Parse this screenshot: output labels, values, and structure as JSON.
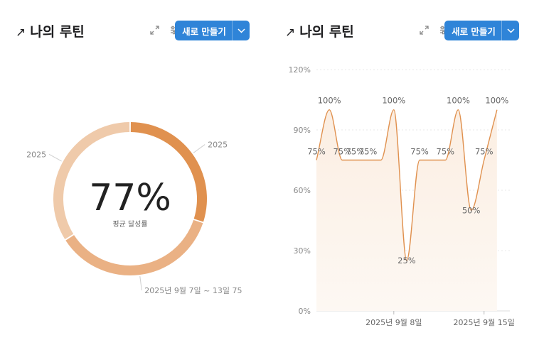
{
  "panels": [
    {
      "title": "나의 루틴",
      "title_icon": "arrow-up-right-icon",
      "new_button_label": "새로 만들기",
      "expand_icon": "expand-icon",
      "settings_icon": "sliders-icon",
      "dropdown_icon": "chevron-down-icon"
    },
    {
      "title": "나의 루틴",
      "title_icon": "arrow-up-right-icon",
      "new_button_label": "새로 만들기",
      "expand_icon": "expand-icon",
      "settings_icon": "sliders-icon",
      "dropdown_icon": "chevron-down-icon"
    }
  ],
  "colors": {
    "accent": "#2f84d8",
    "seg1": "#e0914f",
    "seg2": "#eab184",
    "seg3": "#efcaaa",
    "line": "#e0914f",
    "area": "#fdf3ea"
  },
  "chart_data": [
    {
      "type": "pie",
      "subtype": "donut",
      "center_value": "77%",
      "center_label": "평균 달성률",
      "slices": [
        {
          "label": "2025",
          "value": 30
        },
        {
          "label": "2025년 9월 7일 ~ 13일 75",
          "value": 36
        },
        {
          "label": "2025",
          "value": 34
        }
      ]
    },
    {
      "type": "area",
      "x": [
        "2025-09-02",
        "2025-09-03",
        "2025-09-04",
        "2025-09-05",
        "2025-09-06",
        "2025-09-07",
        "2025-09-08",
        "2025-09-09",
        "2025-09-10",
        "2025-09-11",
        "2025-09-12",
        "2025-09-13",
        "2025-09-14",
        "2025-09-15",
        "2025-09-16",
        "2025-09-17"
      ],
      "values": [
        75,
        100,
        75,
        75,
        75,
        75,
        100,
        25,
        75,
        75,
        75,
        100,
        50,
        75,
        100,
        null
      ],
      "data_labels": [
        "75%",
        "100%",
        "75%",
        "75%",
        "75%",
        null,
        "100%",
        "25%",
        "75%",
        null,
        "75%",
        "100%",
        "50%",
        "75%",
        "100%",
        null
      ],
      "yticks": [
        "0%",
        "30%",
        "60%",
        "90%",
        "120%"
      ],
      "ylim": [
        0,
        120
      ],
      "xticks": [
        {
          "x": "2025-09-08",
          "label": "2025년 9월 8일"
        },
        {
          "x": "2025-09-15",
          "label": "2025년 9월 15일"
        }
      ],
      "grid": true
    }
  ]
}
